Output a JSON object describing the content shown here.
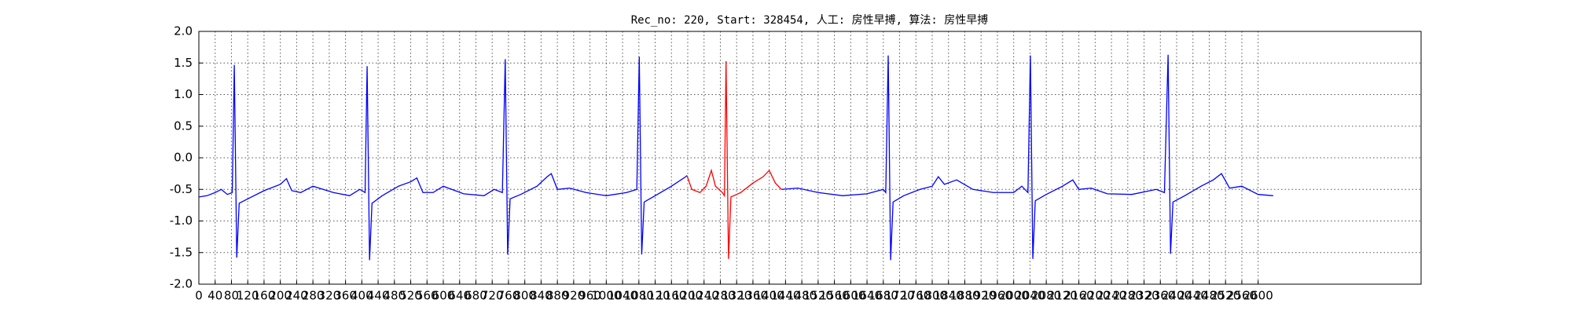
{
  "chart_data": {
    "type": "line",
    "title": "Rec_no: 220, Start: 328454, 人工: 房性早搏, 算法: 房性早搏",
    "xlim": [
      0,
      3000
    ],
    "xticks": [
      0,
      40,
      80,
      120,
      160,
      200,
      240,
      280,
      320,
      360,
      400,
      440,
      480,
      520,
      560,
      600,
      640,
      680,
      720,
      760,
      800,
      840,
      880,
      920,
      960,
      1000,
      1040,
      1080,
      1120,
      1160,
      1200,
      1240,
      1280,
      1320,
      1360,
      1400,
      1440,
      1480,
      1520,
      1560,
      1600,
      1640,
      1680,
      1720,
      1760,
      1800,
      1840,
      1880,
      1920,
      1960,
      2000,
      2040,
      2080,
      2120,
      2160,
      2200,
      2240,
      2280,
      2320,
      2360,
      2400,
      2440,
      2480,
      2520,
      2560,
      2600
    ],
    "ylim": [
      -2,
      2
    ],
    "yticks": [
      {
        "value": -2,
        "label": "-2.0"
      },
      -1.5,
      {
        "value": -1,
        "label": "-1.0"
      },
      -0.5,
      {
        "value": 0,
        "label": "0.0"
      },
      0.5,
      {
        "value": 1,
        "label": "1.0"
      },
      1.5,
      {
        "value": 2,
        "label": "2.0"
      }
    ],
    "grid": true,
    "series": [
      {
        "color": "#0000ff",
        "x": [
          0,
          20,
          40,
          55,
          70,
          82,
          87,
          93,
          99,
          120,
          160,
          200,
          215,
          228,
          250,
          280,
          330,
          370,
          395,
          408,
          413,
          419,
          425,
          450,
          490,
          520,
          535,
          550,
          575,
          600,
          650,
          700,
          725,
          745,
          752,
          758,
          764,
          790,
          830,
          855,
          865,
          880,
          910,
          950,
          1000,
          1050,
          1075,
          1081,
          1087,
          1093,
          1120,
          1160,
          1195,
          1198,
          1300,
          1430,
          1470,
          1520,
          1580,
          1640,
          1680,
          1686,
          1692,
          1698,
          1704,
          1730,
          1770,
          1800,
          1815,
          1830,
          1860,
          1900,
          1950,
          2000,
          2020,
          2035,
          2041,
          2047,
          2053,
          2080,
          2120,
          2145,
          2160,
          2190,
          2230,
          2290,
          2350,
          2370,
          2379,
          2385,
          2391,
          2420,
          2460,
          2490,
          2510,
          2530,
          2560,
          2600,
          2637
        ],
        "values": [
          -0.62,
          -0.6,
          -0.55,
          -0.5,
          -0.58,
          -0.55,
          1.47,
          -1.58,
          -0.72,
          -0.65,
          -0.52,
          -0.42,
          -0.33,
          -0.52,
          -0.55,
          -0.45,
          -0.55,
          -0.6,
          -0.5,
          -0.55,
          1.45,
          -1.62,
          -0.72,
          -0.6,
          -0.45,
          -0.38,
          -0.32,
          -0.55,
          -0.55,
          -0.45,
          -0.57,
          -0.6,
          -0.5,
          -0.55,
          1.56,
          -1.53,
          -0.65,
          -0.58,
          -0.45,
          -0.3,
          -0.25,
          -0.5,
          -0.48,
          -0.55,
          -0.6,
          -0.55,
          -0.5,
          1.6,
          -1.53,
          -0.7,
          -0.6,
          -0.45,
          -0.3,
          -0.28,
          null,
          -0.5,
          -0.48,
          -0.55,
          -0.6,
          -0.57,
          -0.5,
          -0.55,
          1.62,
          -1.62,
          -0.7,
          -0.6,
          -0.5,
          -0.45,
          -0.3,
          -0.42,
          -0.35,
          -0.5,
          -0.55,
          -0.55,
          -0.45,
          -0.55,
          1.62,
          -1.6,
          -0.68,
          -0.58,
          -0.45,
          -0.35,
          -0.5,
          -0.48,
          -0.57,
          -0.58,
          -0.5,
          -0.55,
          1.63,
          -1.52,
          -0.7,
          -0.6,
          -0.45,
          -0.35,
          -0.25,
          -0.48,
          -0.45,
          -0.58,
          -0.6
        ]
      },
      {
        "color": "#ff0000",
        "x": [
          1198,
          1210,
          1230,
          1245,
          1258,
          1268,
          1285,
          1290,
          1294,
          1300,
          1306,
          1330,
          1360,
          1385,
          1400,
          1415,
          1430
        ],
        "values": [
          -0.28,
          -0.5,
          -0.55,
          -0.45,
          -0.2,
          -0.45,
          -0.55,
          -0.6,
          1.53,
          -1.6,
          -0.62,
          -0.55,
          -0.4,
          -0.3,
          -0.2,
          -0.4,
          -0.5
        ]
      }
    ]
  }
}
